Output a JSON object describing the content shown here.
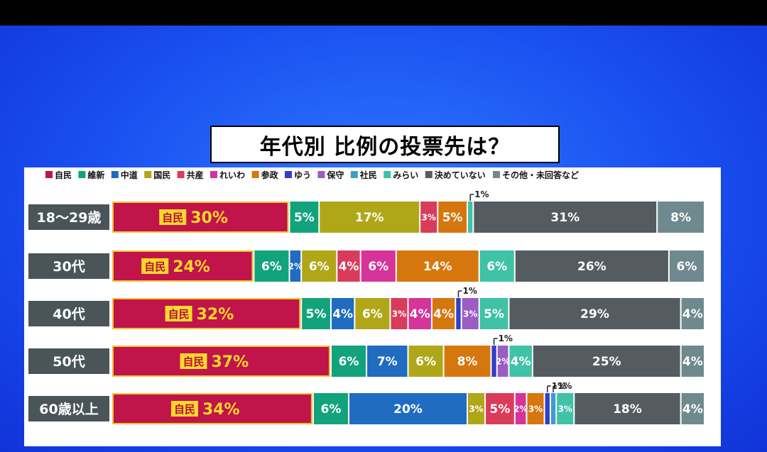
{
  "title": "年代別 比例の投票先は？",
  "colors": {
    "自民": "#c0144a",
    "維新": "#12a37d",
    "中道": "#1f6cc0",
    "国民": "#b0a718",
    "共産": "#d93c5a",
    "れいわ": "#d6339b",
    "参政": "#d6770d",
    "ゆう": "#3140c8",
    "保守": "#9b5cc4",
    "社民": "#3e9ec9",
    "みらい": "#3fc2a6",
    "決めていない": "#545c60",
    "その他・未回答など": "#6f8a8e"
  },
  "chart_data": {
    "type": "bar",
    "orientation": "horizontal",
    "stacked": true,
    "title": "年代別 比例の投票先は？",
    "legend_position": "top",
    "categories": [
      "18〜29歳",
      "30代",
      "40代",
      "50代",
      "60歳以上"
    ],
    "series": [
      {
        "name": "自民",
        "values": [
          30,
          24,
          32,
          37,
          34
        ]
      },
      {
        "name": "維新",
        "values": [
          5,
          6,
          5,
          6,
          6
        ]
      },
      {
        "name": "中道",
        "values": [
          0,
          2,
          4,
          7,
          20
        ]
      },
      {
        "name": "国民",
        "values": [
          17,
          6,
          6,
          6,
          3
        ]
      },
      {
        "name": "共産",
        "values": [
          3,
          4,
          3,
          0,
          5
        ]
      },
      {
        "name": "れいわ",
        "values": [
          0,
          6,
          4,
          0,
          2
        ]
      },
      {
        "name": "参政",
        "values": [
          5,
          14,
          4,
          8,
          3
        ]
      },
      {
        "name": "ゆう",
        "values": [
          0,
          0,
          1,
          1,
          1
        ]
      },
      {
        "name": "保守",
        "values": [
          0,
          0,
          3,
          2,
          0
        ]
      },
      {
        "name": "社民",
        "values": [
          0,
          0,
          0,
          0,
          1
        ]
      },
      {
        "name": "みらい",
        "values": [
          1,
          6,
          5,
          4,
          3
        ]
      },
      {
        "name": "決めていない",
        "values": [
          31,
          26,
          29,
          25,
          18
        ]
      },
      {
        "name": "その他・未回答など",
        "values": [
          8,
          6,
          4,
          4,
          4
        ]
      }
    ],
    "highlight_badge": "自民",
    "value_suffix": "%"
  }
}
